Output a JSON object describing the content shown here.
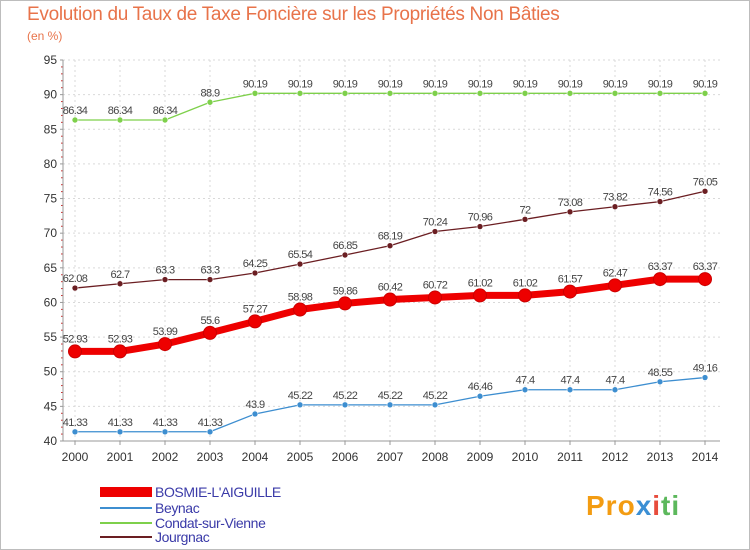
{
  "title": "Evolution du Taux de Taxe Foncière sur les Propriétés Non Bâties",
  "unit": "(en %)",
  "logo": [
    "Pro",
    "x",
    "i",
    "ti"
  ],
  "chart_data": {
    "type": "line",
    "title": "Evolution du Taux de Taxe Foncière sur les Propriétés Non Bâties",
    "ylabel": "(en %)",
    "xlabel": "",
    "ylim": [
      40,
      95
    ],
    "yticks": [
      40,
      45,
      50,
      55,
      60,
      65,
      70,
      75,
      80,
      85,
      90,
      95
    ],
    "grid": true,
    "legend": "bottom-left",
    "x": [
      "2000",
      "2001",
      "2002",
      "2003",
      "2004",
      "2005",
      "2006",
      "2007",
      "2008",
      "2009",
      "2010",
      "2011",
      "2012",
      "2013",
      "2014"
    ],
    "series": [
      {
        "name": "BOSMIE-L'AIGUILLE",
        "color": "#ee0000",
        "emphasis": true,
        "values": [
          52.93,
          52.93,
          53.99,
          55.6,
          57.27,
          58.98,
          59.86,
          60.42,
          60.72,
          61.02,
          61.02,
          61.57,
          62.47,
          63.37,
          63.37
        ],
        "labels": [
          "52.93",
          "52.93",
          "53.99",
          "55.6",
          "57.27",
          "58.98",
          "59.86",
          "60.42",
          "60.72",
          "61.02",
          "61.02",
          "61.57",
          "62.47",
          "63.37",
          "63.37"
        ]
      },
      {
        "name": "Beynac",
        "color": "#3d8ed0",
        "values": [
          41.33,
          41.33,
          41.33,
          41.33,
          43.9,
          45.22,
          45.22,
          45.22,
          45.22,
          46.46,
          47.4,
          47.4,
          47.4,
          48.55,
          49.16
        ],
        "labels": [
          "41.33",
          "41.33",
          "41.33",
          "41.33",
          "43.9",
          "45.22",
          "45.22",
          "45.22",
          "45.22",
          "46.46",
          "47.4",
          "47.4",
          "47.4",
          "48.55",
          "49.16"
        ]
      },
      {
        "name": "Condat-sur-Vienne",
        "color": "#7ed04b",
        "values": [
          86.34,
          86.34,
          86.34,
          88.9,
          90.19,
          90.19,
          90.19,
          90.19,
          90.19,
          90.19,
          90.19,
          90.19,
          90.19,
          90.19,
          90.19
        ],
        "labels": [
          "86.34",
          "86.34",
          "86.34",
          "88.9",
          "90.19",
          "90.19",
          "90.19",
          "90.19",
          "90.19",
          "90.19",
          "90.19",
          "90.19",
          "90.19",
          "90.19",
          "90.19"
        ]
      },
      {
        "name": "Jourgnac",
        "color": "#6b1e22",
        "values": [
          62.08,
          62.7,
          63.3,
          63.3,
          64.25,
          65.54,
          66.85,
          68.19,
          70.24,
          70.96,
          72,
          73.08,
          73.82,
          74.56,
          76.05
        ],
        "labels": [
          "62.08",
          "62.7",
          "63.3",
          "63.3",
          "64.25",
          "65.54",
          "66.85",
          "68.19",
          "70.24",
          "70.96",
          "72",
          "73.08",
          "73.82",
          "74.56",
          "76.05"
        ]
      }
    ]
  }
}
